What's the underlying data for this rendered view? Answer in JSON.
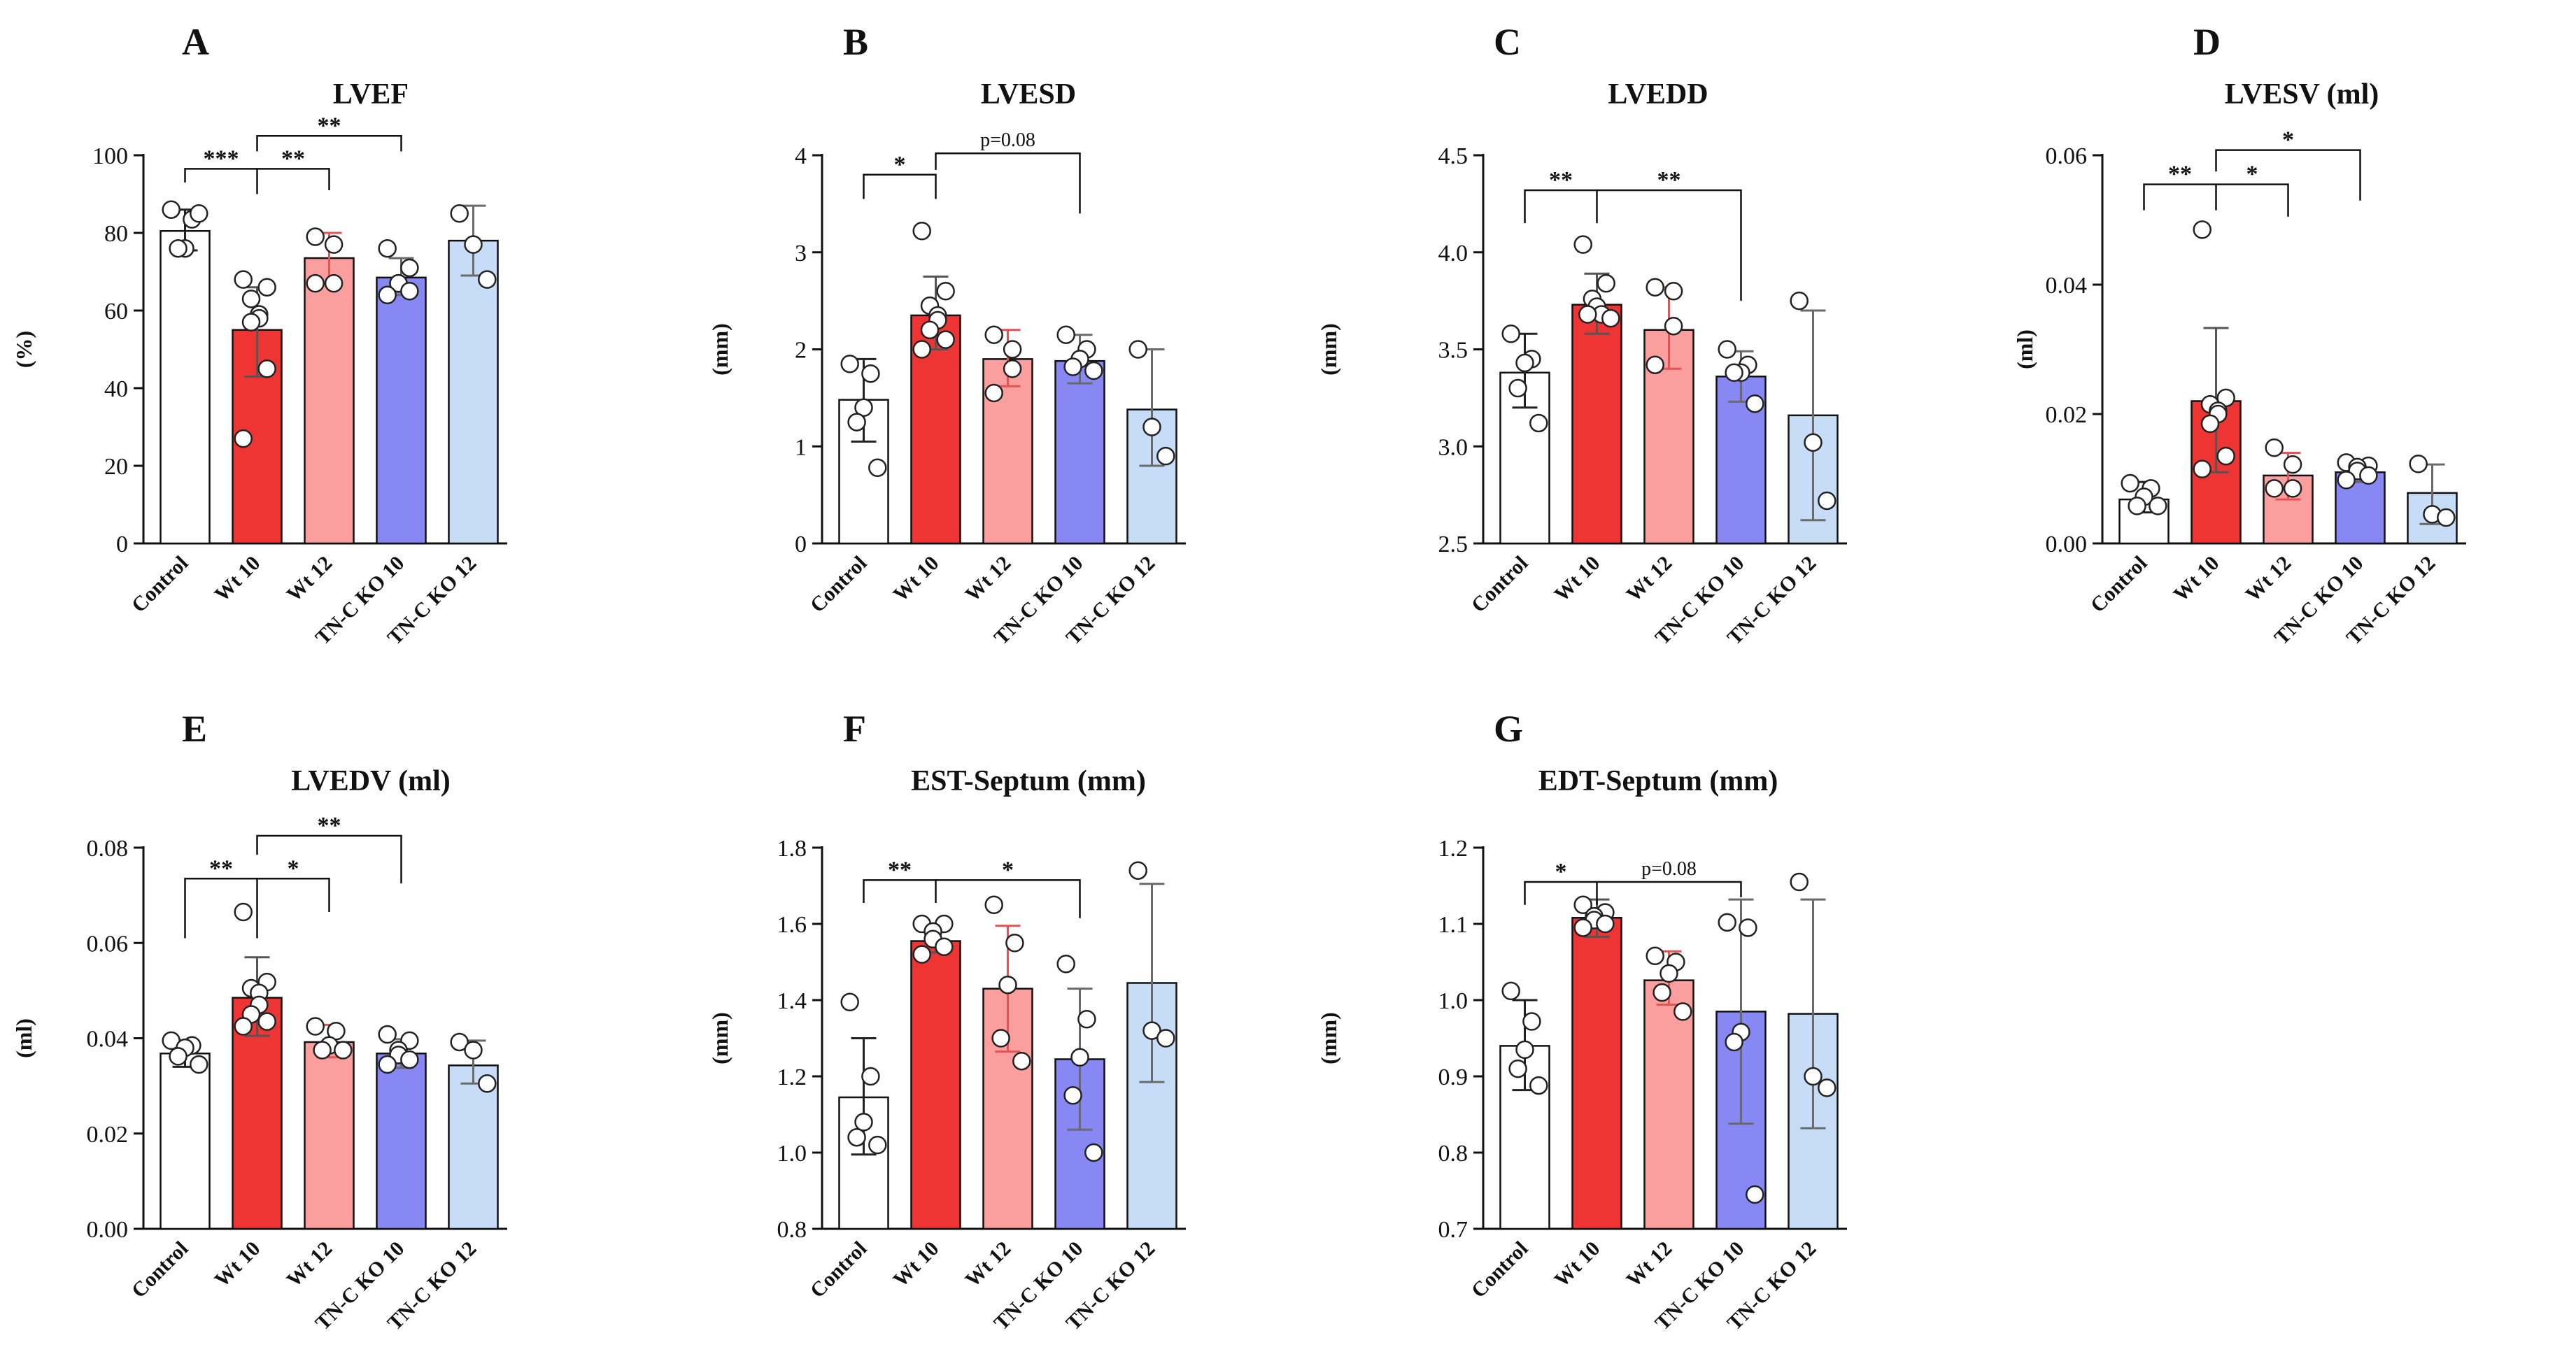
{
  "figure": {
    "categories": [
      "Control",
      "Wt 10",
      "Wt 12",
      "TN-C KO 10",
      "TN-C KO 12"
    ],
    "bar_colors": [
      "#ffffff",
      "#ef3434",
      "#fa9e9e",
      "#8888f4",
      "#c7dcf6"
    ],
    "error_colors": [
      "#222222",
      "#555555",
      "#e45454",
      "#6a6a6a",
      "#6a6a6a"
    ],
    "dot_color": "#222222",
    "axis_color": "#111111"
  },
  "chart_data": [
    {
      "type": "bar",
      "letter": "A",
      "title": "LVEF",
      "ylabel": "(%)",
      "ylim": [
        0,
        100
      ],
      "yticks": [
        0,
        20,
        40,
        60,
        80,
        100
      ],
      "tick_labels": [
        "0",
        "20",
        "40",
        "60",
        "80",
        "100"
      ],
      "values": [
        80.5,
        55,
        73.5,
        68.5,
        78
      ],
      "err_low": [
        75.5,
        43,
        67,
        64,
        69
      ],
      "err_high": [
        86,
        66,
        80,
        73.5,
        87
      ],
      "points": [
        [
          86,
          83.5,
          76,
          76,
          85
        ],
        [
          68,
          66,
          63,
          59,
          58,
          57,
          45,
          27
        ],
        [
          79,
          77,
          67,
          67
        ],
        [
          76,
          71,
          67,
          67,
          65,
          64
        ],
        [
          85,
          77,
          68
        ]
      ],
      "brackets": [
        {
          "from": 0,
          "to": 1,
          "label": "***",
          "y_top": 96.5,
          "y_left": 93,
          "y_right": 90
        },
        {
          "from": 1,
          "to": 2,
          "label": "**",
          "y_top": 96.5,
          "y_left": 96.5,
          "y_right": 91
        },
        {
          "from": 1,
          "to": 3,
          "label": "**",
          "y_top": 105,
          "y_left": 101,
          "y_right": 101
        }
      ]
    },
    {
      "type": "bar",
      "letter": "B",
      "title": "LVESD",
      "ylabel": "(mm)",
      "ylim": [
        0,
        4
      ],
      "yticks": [
        0,
        1,
        2,
        3,
        4
      ],
      "tick_labels": [
        "0",
        "1",
        "2",
        "3",
        "4"
      ],
      "values": [
        1.48,
        2.35,
        1.9,
        1.88,
        1.38
      ],
      "err_low": [
        1.05,
        2.0,
        1.62,
        1.65,
        0.8
      ],
      "err_high": [
        1.9,
        2.75,
        2.2,
        2.15,
        2.0
      ],
      "points": [
        [
          1.85,
          1.75,
          1.4,
          1.25,
          0.78
        ],
        [
          3.22,
          2.6,
          2.45,
          2.35,
          2.3,
          2.2,
          2.1,
          2.0
        ],
        [
          2.15,
          2.0,
          1.8,
          1.55
        ],
        [
          2.15,
          2.0,
          1.9,
          1.82,
          1.78
        ],
        [
          2.0,
          1.2,
          0.9
        ]
      ],
      "brackets": [
        {
          "from": 0,
          "to": 1,
          "label": "*",
          "y_top": 3.8,
          "y_left": 3.55,
          "y_right": 3.55
        },
        {
          "from": 1,
          "to": 3,
          "label": "p=0.08",
          "y_top": 4.02,
          "y_left": 3.85,
          "y_right": 3.4
        }
      ]
    },
    {
      "type": "bar",
      "letter": "C",
      "title": "LVEDD",
      "ylabel": "(mm)",
      "ylim": [
        2.5,
        4.5
      ],
      "yticks": [
        2.5,
        3.0,
        3.5,
        4.0,
        4.5
      ],
      "tick_labels": [
        "2.5",
        "3.0",
        "3.5",
        "4.0",
        "4.5"
      ],
      "values": [
        3.38,
        3.73,
        3.6,
        3.36,
        3.16
      ],
      "err_low": [
        3.2,
        3.58,
        3.4,
        3.23,
        2.62
      ],
      "err_high": [
        3.58,
        3.89,
        3.82,
        3.49,
        3.7
      ],
      "points": [
        [
          3.58,
          3.45,
          3.43,
          3.3,
          3.12
        ],
        [
          4.04,
          3.84,
          3.76,
          3.72,
          3.68,
          3.68,
          3.66
        ],
        [
          3.82,
          3.8,
          3.62,
          3.42
        ],
        [
          3.5,
          3.42,
          3.38,
          3.38,
          3.22
        ],
        [
          3.75,
          3.02,
          2.72
        ]
      ],
      "brackets": [
        {
          "from": 0,
          "to": 1,
          "label": "**",
          "y_top": 4.32,
          "y_left": 4.15,
          "y_right": 4.15
        },
        {
          "from": 1,
          "to": 3,
          "label": "**",
          "y_top": 4.32,
          "y_left": 4.32,
          "y_right": 3.75
        }
      ]
    },
    {
      "type": "bar",
      "letter": "D",
      "title": "LVESV (ml)",
      "ylabel": "(ml)",
      "ylim": [
        0,
        0.06
      ],
      "yticks": [
        0,
        0.02,
        0.04,
        0.06
      ],
      "tick_labels": [
        "0.00",
        "0.02",
        "0.04",
        "0.06"
      ],
      "values": [
        0.0068,
        0.022,
        0.0105,
        0.011,
        0.0078
      ],
      "err_low": [
        0.0048,
        0.011,
        0.0068,
        0.0095,
        0.003
      ],
      "err_high": [
        0.0095,
        0.0333,
        0.014,
        0.0125,
        0.0122
      ],
      "points": [
        [
          0.0093,
          0.0085,
          0.0072,
          0.0058,
          0.0058
        ],
        [
          0.0485,
          0.0225,
          0.0215,
          0.0205,
          0.02,
          0.0185,
          0.0135,
          0.0115
        ],
        [
          0.0148,
          0.0122,
          0.0085,
          0.0085
        ],
        [
          0.0125,
          0.012,
          0.0118,
          0.0112,
          0.0105,
          0.0098
        ],
        [
          0.0123,
          0.0045,
          0.004
        ]
      ],
      "brackets": [
        {
          "from": 0,
          "to": 1,
          "label": "**",
          "y_top": 0.0555,
          "y_left": 0.0515,
          "y_right": 0.0515
        },
        {
          "from": 1,
          "to": 2,
          "label": "*",
          "y_top": 0.0555,
          "y_left": 0.0555,
          "y_right": 0.0505
        },
        {
          "from": 1,
          "to": 3,
          "label": "*",
          "y_top": 0.0608,
          "y_left": 0.0575,
          "y_right": 0.053
        }
      ]
    },
    {
      "type": "bar",
      "letter": "E",
      "title": "LVEDV (ml)",
      "ylabel": "(ml)",
      "ylim": [
        0,
        0.08
      ],
      "yticks": [
        0,
        0.02,
        0.04,
        0.06,
        0.08
      ],
      "tick_labels": [
        "0.00",
        "0.02",
        "0.04",
        "0.06",
        "0.08"
      ],
      "values": [
        0.0368,
        0.0485,
        0.0392,
        0.0368,
        0.0343
      ],
      "err_low": [
        0.034,
        0.0405,
        0.036,
        0.0338,
        0.0305
      ],
      "err_high": [
        0.0395,
        0.057,
        0.0428,
        0.0398,
        0.0395
      ],
      "points": [
        [
          0.0395,
          0.0385,
          0.038,
          0.0362,
          0.0345
        ],
        [
          0.0665,
          0.0518,
          0.0505,
          0.0495,
          0.047,
          0.045,
          0.0435,
          0.0425
        ],
        [
          0.0425,
          0.0415,
          0.0385,
          0.0375,
          0.0375
        ],
        [
          0.0408,
          0.0395,
          0.0375,
          0.0365,
          0.0355,
          0.0345
        ],
        [
          0.0392,
          0.0375,
          0.0305
        ]
      ],
      "brackets": [
        {
          "from": 0,
          "to": 1,
          "label": "**",
          "y_top": 0.0735,
          "y_left": 0.061,
          "y_right": 0.061
        },
        {
          "from": 1,
          "to": 2,
          "label": "*",
          "y_top": 0.0735,
          "y_left": 0.0735,
          "y_right": 0.0665
        },
        {
          "from": 1,
          "to": 3,
          "label": "**",
          "y_top": 0.0825,
          "y_left": 0.0785,
          "y_right": 0.0725
        }
      ]
    },
    {
      "type": "bar",
      "letter": "F",
      "title": "EST-Septum (mm)",
      "ylabel": "(mm)",
      "ylim": [
        0.8,
        1.8
      ],
      "yticks": [
        0.8,
        1.0,
        1.2,
        1.4,
        1.6,
        1.8
      ],
      "tick_labels": [
        "0.8",
        "1.0",
        "1.2",
        "1.4",
        "1.6",
        "1.8"
      ],
      "values": [
        1.145,
        1.555,
        1.43,
        1.245,
        1.445
      ],
      "err_low": [
        0.995,
        1.525,
        1.265,
        1.06,
        1.185
      ],
      "err_high": [
        1.3,
        1.59,
        1.595,
        1.43,
        1.705
      ],
      "points": [
        [
          1.395,
          1.2,
          1.08,
          1.04,
          1.02
        ],
        [
          1.6,
          1.6,
          1.58,
          1.56,
          1.54,
          1.52
        ],
        [
          1.65,
          1.55,
          1.44,
          1.3,
          1.24
        ],
        [
          1.495,
          1.35,
          1.25,
          1.15,
          1.0
        ],
        [
          1.74,
          1.32,
          1.3
        ]
      ],
      "brackets": [
        {
          "from": 0,
          "to": 1,
          "label": "**",
          "y_top": 1.715,
          "y_left": 1.655,
          "y_right": 1.655
        },
        {
          "from": 1,
          "to": 3,
          "label": "*",
          "y_top": 1.715,
          "y_left": 1.715,
          "y_right": 1.615
        }
      ]
    },
    {
      "type": "bar",
      "letter": "G",
      "title": "EDT-Septum (mm)",
      "ylabel": "(mm)",
      "ylim": [
        0.7,
        1.2
      ],
      "yticks": [
        0.7,
        0.8,
        0.9,
        1.0,
        1.1,
        1.2
      ],
      "tick_labels": [
        "0.7",
        "0.8",
        "0.9",
        "1.0",
        "1.1",
        "1.2"
      ],
      "values": [
        0.94,
        1.108,
        1.026,
        0.985,
        0.982
      ],
      "err_low": [
        0.882,
        1.083,
        0.994,
        0.838,
        0.832
      ],
      "err_high": [
        1.0,
        1.132,
        1.064,
        1.132,
        1.132
      ],
      "points": [
        [
          1.012,
          0.972,
          0.935,
          0.91,
          0.888
        ],
        [
          1.125,
          1.115,
          1.11,
          1.105,
          1.1,
          1.095
        ],
        [
          1.058,
          1.05,
          1.035,
          1.01,
          0.985
        ],
        [
          1.102,
          1.095,
          0.958,
          0.945,
          0.745
        ],
        [
          1.155,
          0.9,
          0.885
        ]
      ],
      "brackets": [
        {
          "from": 0,
          "to": 1,
          "label": "*",
          "y_top": 1.155,
          "y_left": 1.125,
          "y_right": 1.125
        },
        {
          "from": 1,
          "to": 3,
          "label": "p=0.08",
          "y_top": 1.155,
          "y_left": 1.155,
          "y_right": 1.135
        }
      ]
    }
  ]
}
